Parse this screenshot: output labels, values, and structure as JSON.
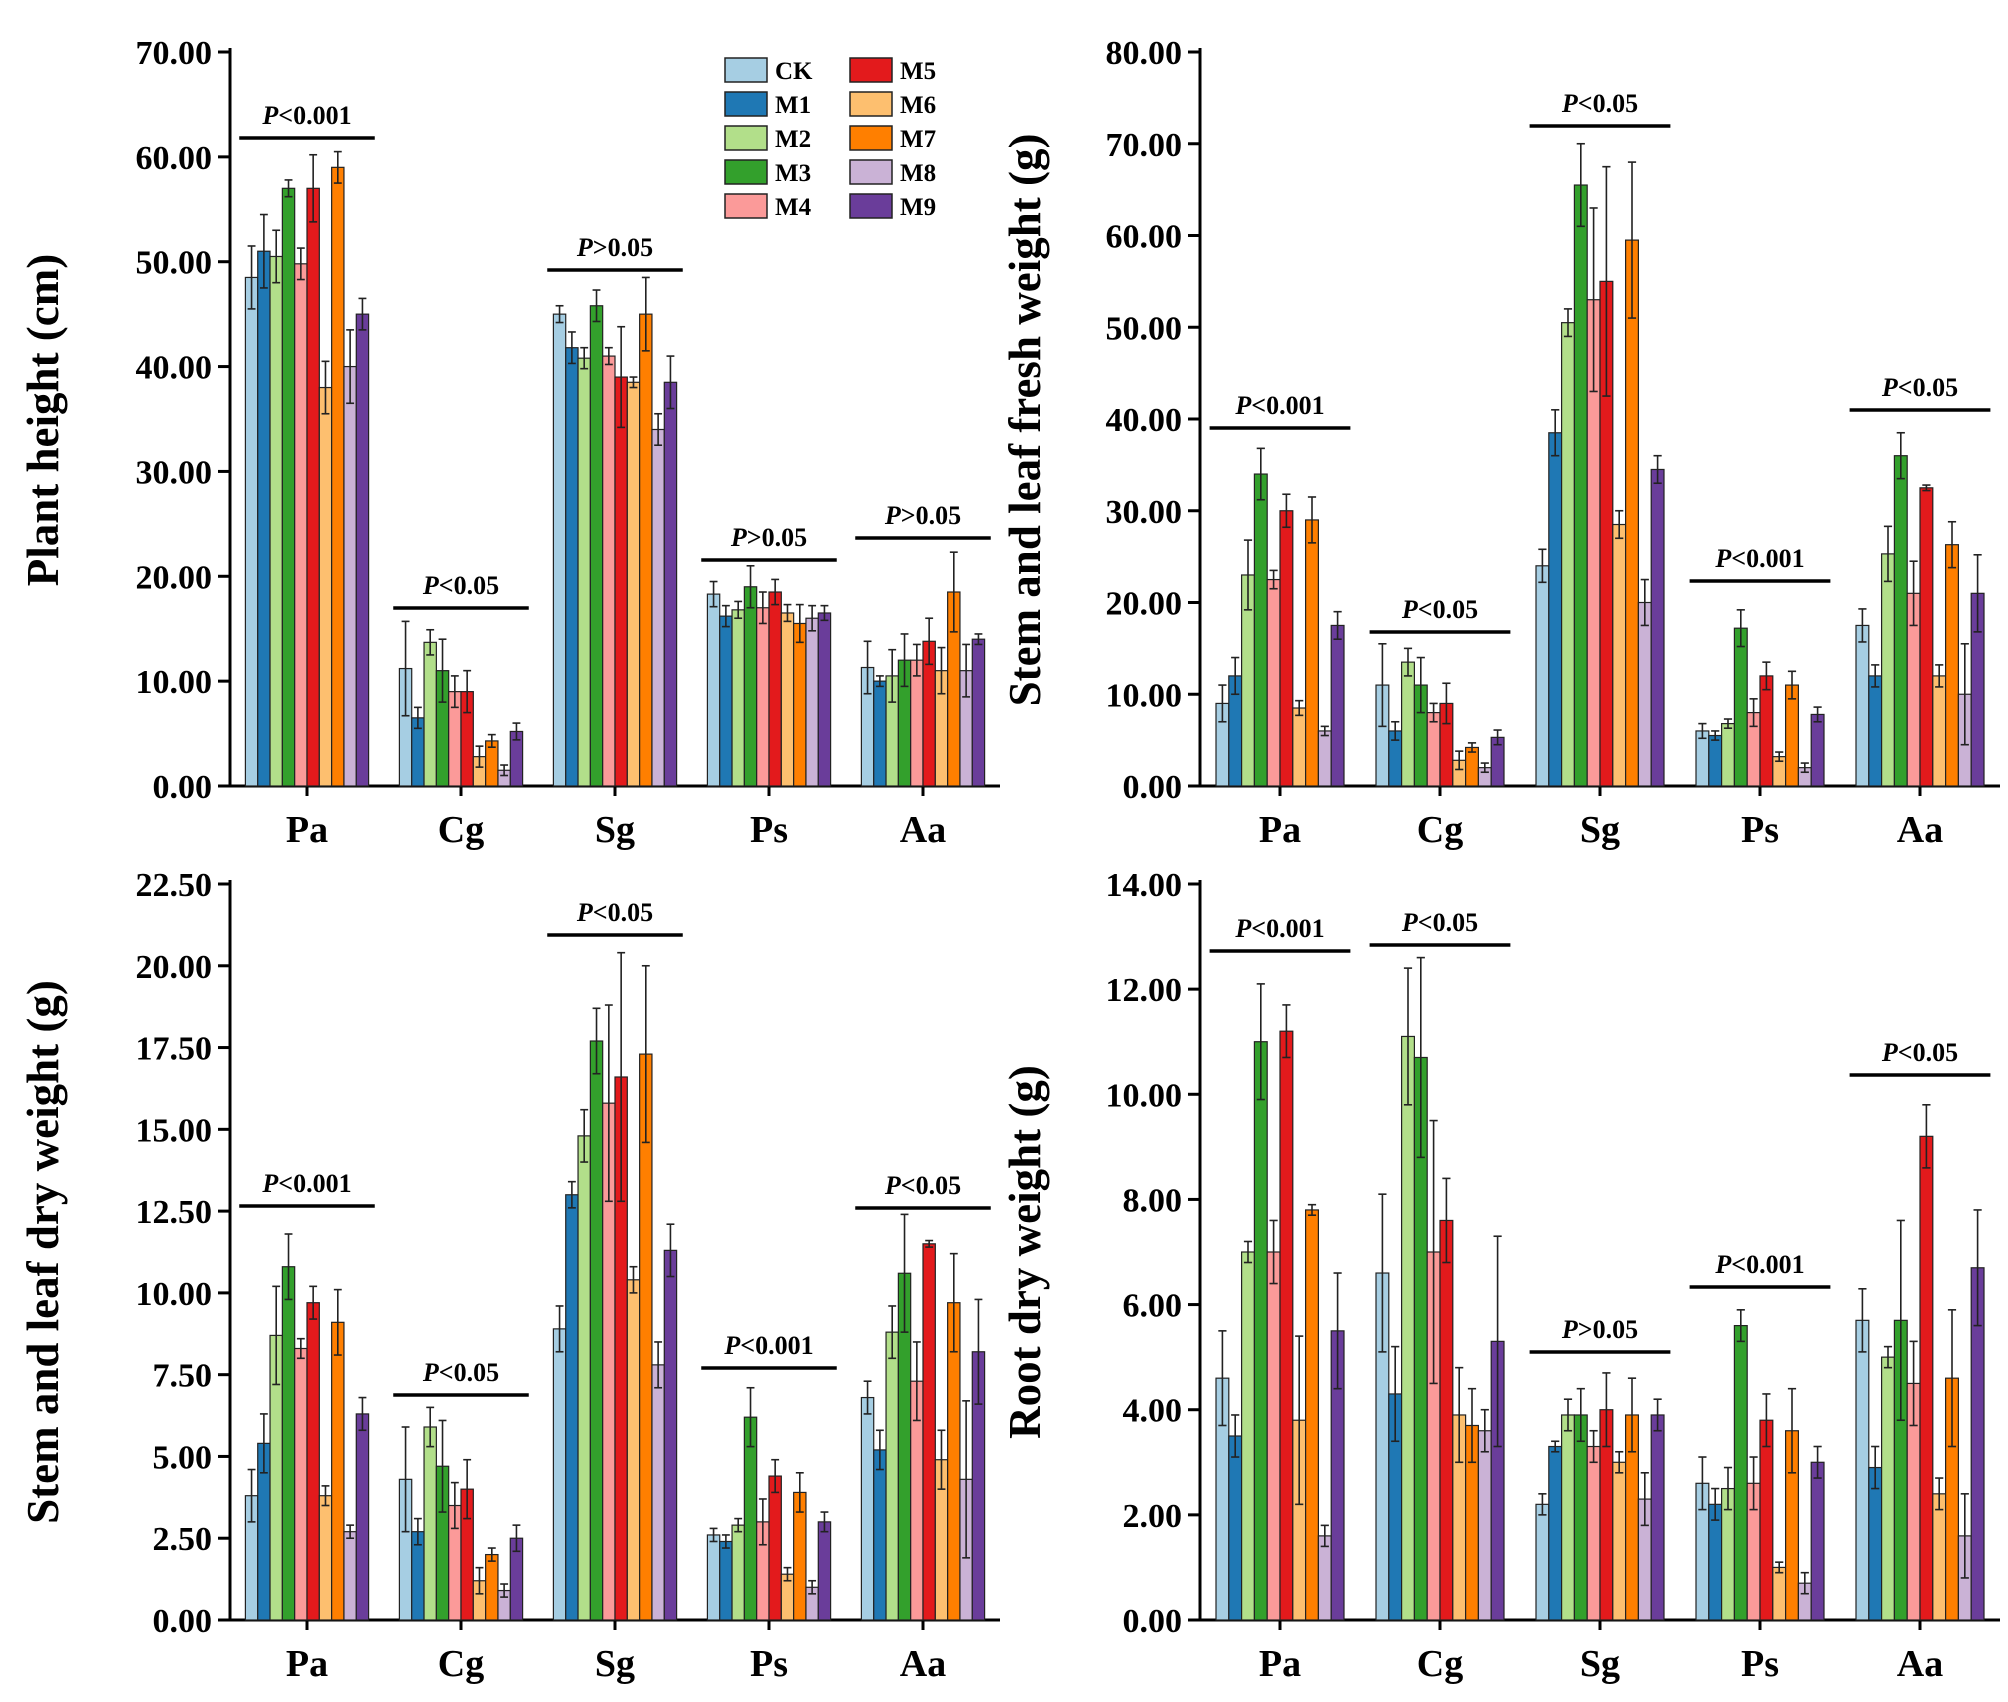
{
  "colors": {
    "CK": "#a6cee3",
    "M1": "#1f78b4",
    "M2": "#b2df8a",
    "M3": "#33a02c",
    "M4": "#fb9a99",
    "M5": "#e31a1c",
    "M6": "#fdbf6f",
    "M7": "#ff7f00",
    "M8": "#cab2d6",
    "M9": "#6a3d9a"
  },
  "chart_data": [
    {
      "type": "bar",
      "ylabel": "Plant height (cm)",
      "ylim": [
        0,
        70
      ],
      "yticks": [
        "0.00",
        "10.00",
        "20.00",
        "30.00",
        "40.00",
        "50.00",
        "60.00",
        "70.00"
      ],
      "categories": [
        "Pa",
        "Cg",
        "Sg",
        "Ps",
        "Aa"
      ],
      "legend": "top-center",
      "series": [
        {
          "name": "CK",
          "values": [
            48.5,
            11.2,
            45.0,
            18.3,
            11.3
          ],
          "errors": [
            3.0,
            4.5,
            0.8,
            1.2,
            2.5
          ]
        },
        {
          "name": "M1",
          "values": [
            51.0,
            6.5,
            41.8,
            16.2,
            10.0
          ],
          "errors": [
            3.5,
            1.0,
            1.5,
            1.0,
            0.5
          ]
        },
        {
          "name": "M2",
          "values": [
            50.5,
            13.7,
            40.8,
            16.8,
            10.5
          ],
          "errors": [
            2.5,
            1.2,
            1.0,
            0.8,
            2.5
          ]
        },
        {
          "name": "M3",
          "values": [
            57.0,
            11.0,
            45.8,
            19.0,
            12.0
          ],
          "errors": [
            0.8,
            3.0,
            1.5,
            2.0,
            2.5
          ]
        },
        {
          "name": "M4",
          "values": [
            49.8,
            9.0,
            41.0,
            17.0,
            12.0
          ],
          "errors": [
            1.5,
            1.5,
            0.8,
            1.5,
            1.5
          ]
        },
        {
          "name": "M5",
          "values": [
            57.0,
            9.0,
            39.0,
            18.5,
            13.8
          ],
          "errors": [
            3.2,
            2.0,
            4.8,
            1.2,
            2.2
          ]
        },
        {
          "name": "M6",
          "values": [
            38.0,
            2.8,
            38.5,
            16.5,
            11.0
          ],
          "errors": [
            2.5,
            1.0,
            0.5,
            0.8,
            2.2
          ]
        },
        {
          "name": "M7",
          "values": [
            59.0,
            4.3,
            45.0,
            15.5,
            18.5
          ],
          "errors": [
            1.5,
            0.6,
            3.5,
            1.8,
            3.8
          ]
        },
        {
          "name": "M8",
          "values": [
            40.0,
            1.5,
            34.0,
            16.0,
            11.0
          ],
          "errors": [
            3.5,
            0.5,
            1.5,
            1.2,
            2.5
          ]
        },
        {
          "name": "M9",
          "values": [
            45.0,
            5.2,
            38.5,
            16.5,
            14.0
          ],
          "errors": [
            1.5,
            0.8,
            2.5,
            0.7,
            0.5
          ]
        }
      ],
      "annotations": [
        {
          "italic": "P",
          "text": "<0.001",
          "category": "Pa"
        },
        {
          "italic": "P",
          "text": "<0.05",
          "category": "Cg"
        },
        {
          "italic": "P",
          "text": ">0.05",
          "category": "Sg"
        },
        {
          "italic": "P",
          "text": ">0.05",
          "category": "Ps"
        },
        {
          "italic": "P",
          "text": ">0.05",
          "category": "Aa"
        }
      ]
    },
    {
      "type": "bar",
      "ylabel": "Stem and leaf fresh weight (g)",
      "ylim": [
        0,
        80
      ],
      "yticks": [
        "0.00",
        "10.00",
        "20.00",
        "30.00",
        "40.00",
        "50.00",
        "60.00",
        "70.00",
        "80.00"
      ],
      "categories": [
        "Pa",
        "Cg",
        "Sg",
        "Ps",
        "Aa"
      ],
      "series": [
        {
          "name": "CK",
          "values": [
            9.0,
            11.0,
            24.0,
            6.0,
            17.5
          ],
          "errors": [
            2.0,
            4.5,
            1.8,
            0.8,
            1.8
          ]
        },
        {
          "name": "M1",
          "values": [
            12.0,
            6.0,
            38.5,
            5.5,
            12.0
          ],
          "errors": [
            2.0,
            1.0,
            2.5,
            0.5,
            1.2
          ]
        },
        {
          "name": "M2",
          "values": [
            23.0,
            13.5,
            50.5,
            6.8,
            25.3
          ],
          "errors": [
            3.8,
            1.5,
            1.5,
            0.5,
            3.0
          ]
        },
        {
          "name": "M3",
          "values": [
            34.0,
            11.0,
            65.5,
            17.2,
            36.0
          ],
          "errors": [
            2.8,
            3.0,
            4.5,
            2.0,
            2.5
          ]
        },
        {
          "name": "M4",
          "values": [
            22.5,
            8.0,
            53.0,
            8.0,
            21.0
          ],
          "errors": [
            1.0,
            1.0,
            10.0,
            1.5,
            3.5
          ]
        },
        {
          "name": "M5",
          "values": [
            30.0,
            9.0,
            55.0,
            12.0,
            32.5
          ],
          "errors": [
            1.8,
            2.2,
            12.5,
            1.5,
            0.3
          ]
        },
        {
          "name": "M6",
          "values": [
            8.5,
            2.8,
            28.5,
            3.2,
            12.0
          ],
          "errors": [
            0.8,
            1.0,
            1.5,
            0.5,
            1.2
          ]
        },
        {
          "name": "M7",
          "values": [
            29.0,
            4.2,
            59.5,
            11.0,
            26.3
          ],
          "errors": [
            2.5,
            0.5,
            8.5,
            1.5,
            2.5
          ]
        },
        {
          "name": "M8",
          "values": [
            6.0,
            2.0,
            20.0,
            2.0,
            10.0
          ],
          "errors": [
            0.5,
            0.5,
            2.5,
            0.5,
            5.5
          ]
        },
        {
          "name": "M9",
          "values": [
            17.5,
            5.3,
            34.5,
            7.8,
            21.0
          ],
          "errors": [
            1.5,
            0.8,
            1.5,
            0.8,
            4.2
          ]
        }
      ],
      "annotations": [
        {
          "italic": "P",
          "text": "<0.001",
          "category": "Pa"
        },
        {
          "italic": "P",
          "text": "<0.05",
          "category": "Cg"
        },
        {
          "italic": "P",
          "text": "<0.05",
          "category": "Sg"
        },
        {
          "italic": "P",
          "text": "<0.001",
          "category": "Ps"
        },
        {
          "italic": "P",
          "text": "<0.05",
          "category": "Aa"
        }
      ]
    },
    {
      "type": "bar",
      "ylabel": "Stem and leaf dry weight (g)",
      "ylim": [
        0,
        22.5
      ],
      "yticks": [
        "0.00",
        "2.50",
        "5.00",
        "7.50",
        "10.00",
        "12.50",
        "15.00",
        "17.50",
        "20.00",
        "22.50"
      ],
      "categories": [
        "Pa",
        "Cg",
        "Sg",
        "Ps",
        "Aa"
      ],
      "series": [
        {
          "name": "CK",
          "values": [
            3.8,
            4.3,
            8.9,
            2.6,
            6.8
          ],
          "errors": [
            0.8,
            1.6,
            0.7,
            0.2,
            0.5
          ]
        },
        {
          "name": "M1",
          "values": [
            5.4,
            2.7,
            13.0,
            2.4,
            5.2
          ],
          "errors": [
            0.9,
            0.4,
            0.4,
            0.2,
            0.6
          ]
        },
        {
          "name": "M2",
          "values": [
            8.7,
            5.9,
            14.8,
            2.9,
            8.8
          ],
          "errors": [
            1.5,
            0.6,
            0.8,
            0.2,
            0.8
          ]
        },
        {
          "name": "M3",
          "values": [
            10.8,
            4.7,
            17.7,
            6.2,
            10.6
          ],
          "errors": [
            1.0,
            1.4,
            1.0,
            0.9,
            1.8
          ]
        },
        {
          "name": "M4",
          "values": [
            8.3,
            3.5,
            15.8,
            3.0,
            7.3
          ],
          "errors": [
            0.3,
            0.7,
            3.0,
            0.7,
            1.2
          ]
        },
        {
          "name": "M5",
          "values": [
            9.7,
            4.0,
            16.6,
            4.4,
            11.5
          ],
          "errors": [
            0.5,
            0.9,
            3.8,
            0.5,
            0.1
          ]
        },
        {
          "name": "M6",
          "values": [
            3.8,
            1.2,
            10.4,
            1.4,
            4.9
          ],
          "errors": [
            0.3,
            0.4,
            0.4,
            0.2,
            0.9
          ]
        },
        {
          "name": "M7",
          "values": [
            9.1,
            2.0,
            17.3,
            3.9,
            9.7
          ],
          "errors": [
            1.0,
            0.2,
            2.7,
            0.6,
            1.5
          ]
        },
        {
          "name": "M8",
          "values": [
            2.7,
            0.9,
            7.8,
            1.0,
            4.3
          ],
          "errors": [
            0.2,
            0.2,
            0.7,
            0.2,
            2.4
          ]
        },
        {
          "name": "M9",
          "values": [
            6.3,
            2.5,
            11.3,
            3.0,
            8.2
          ],
          "errors": [
            0.5,
            0.4,
            0.8,
            0.3,
            1.6
          ]
        }
      ],
      "annotations": [
        {
          "italic": "P",
          "text": "<0.001",
          "category": "Pa"
        },
        {
          "italic": "P",
          "text": "<0.05",
          "category": "Cg"
        },
        {
          "italic": "P",
          "text": "<0.05",
          "category": "Sg"
        },
        {
          "italic": "P",
          "text": "<0.001",
          "category": "Ps"
        },
        {
          "italic": "P",
          "text": "<0.05",
          "category": "Aa"
        }
      ]
    },
    {
      "type": "bar",
      "ylabel": "Root dry weight (g)",
      "ylim": [
        0,
        14
      ],
      "yticks": [
        "0.00",
        "2.00",
        "4.00",
        "6.00",
        "8.00",
        "10.00",
        "12.00",
        "14.00"
      ],
      "categories": [
        "Pa",
        "Cg",
        "Sg",
        "Ps",
        "Aa"
      ],
      "series": [
        {
          "name": "CK",
          "values": [
            4.6,
            6.6,
            2.2,
            2.6,
            5.7
          ],
          "errors": [
            0.9,
            1.5,
            0.2,
            0.5,
            0.6
          ]
        },
        {
          "name": "M1",
          "values": [
            3.5,
            4.3,
            3.3,
            2.2,
            2.9
          ],
          "errors": [
            0.4,
            0.9,
            0.1,
            0.3,
            0.4
          ]
        },
        {
          "name": "M2",
          "values": [
            7.0,
            11.1,
            3.9,
            2.5,
            5.0
          ],
          "errors": [
            0.2,
            1.3,
            0.3,
            0.4,
            0.2
          ]
        },
        {
          "name": "M3",
          "values": [
            11.0,
            10.7,
            3.9,
            5.6,
            5.7
          ],
          "errors": [
            1.1,
            1.9,
            0.5,
            0.3,
            1.9
          ]
        },
        {
          "name": "M4",
          "values": [
            7.0,
            7.0,
            3.3,
            2.6,
            4.5
          ],
          "errors": [
            0.6,
            2.5,
            0.3,
            0.5,
            0.8
          ]
        },
        {
          "name": "M5",
          "values": [
            11.2,
            7.6,
            4.0,
            3.8,
            9.2
          ],
          "errors": [
            0.5,
            0.8,
            0.7,
            0.5,
            0.6
          ]
        },
        {
          "name": "M6",
          "values": [
            3.8,
            3.9,
            3.0,
            1.0,
            2.4
          ],
          "errors": [
            1.6,
            0.9,
            0.2,
            0.1,
            0.3
          ]
        },
        {
          "name": "M7",
          "values": [
            7.8,
            3.7,
            3.9,
            3.6,
            4.6
          ],
          "errors": [
            0.1,
            0.7,
            0.7,
            0.8,
            1.3
          ]
        },
        {
          "name": "M8",
          "values": [
            1.6,
            3.6,
            2.3,
            0.7,
            1.6
          ],
          "errors": [
            0.2,
            0.4,
            0.5,
            0.2,
            0.8
          ]
        },
        {
          "name": "M9",
          "values": [
            5.5,
            5.3,
            3.9,
            3.0,
            6.7
          ],
          "errors": [
            1.1,
            2.0,
            0.3,
            0.3,
            1.1
          ]
        }
      ],
      "annotations": [
        {
          "italic": "P",
          "text": "<0.001",
          "category": "Pa"
        },
        {
          "italic": "P",
          "text": "<0.05",
          "category": "Cg"
        },
        {
          "italic": "P",
          "text": ">0.05",
          "category": "Sg"
        },
        {
          "italic": "P",
          "text": "<0.001",
          "category": "Ps"
        },
        {
          "italic": "P",
          "text": "<0.05",
          "category": "Aa"
        }
      ]
    }
  ]
}
